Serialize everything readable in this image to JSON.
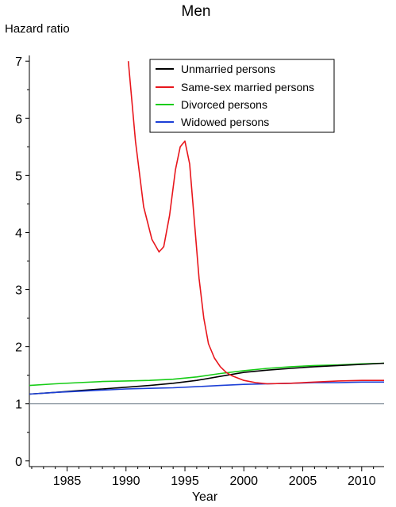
{
  "chart_data": {
    "type": "line",
    "title": "Men",
    "ylabel": "Hazard ratio",
    "xlabel": "Year",
    "xlim": [
      1981.8,
      2011.9
    ],
    "ylim": [
      -0.1,
      7.1
    ],
    "x_ticks": [
      1985,
      1990,
      1995,
      2000,
      2005,
      2010
    ],
    "y_ticks": [
      0,
      1,
      2,
      3,
      4,
      5,
      6,
      7
    ],
    "reference_line": 1,
    "grid": false,
    "legend_position": "top-right",
    "series": [
      {
        "name": "Unmarried persons",
        "color": "#000000",
        "x": [
          1981.8,
          1984,
          1986,
          1988,
          1990,
          1992,
          1994,
          1996,
          1998,
          2000,
          2002,
          2004,
          2006,
          2008,
          2010,
          2011.9
        ],
        "y": [
          1.17,
          1.2,
          1.23,
          1.26,
          1.29,
          1.32,
          1.36,
          1.41,
          1.48,
          1.55,
          1.59,
          1.62,
          1.65,
          1.67,
          1.69,
          1.71
        ]
      },
      {
        "name": "Same-sex married persons",
        "color": "#e8161c",
        "x": [
          1990.2,
          1990.8,
          1991.5,
          1992.2,
          1992.8,
          1993.2,
          1993.7,
          1994.2,
          1994.6,
          1995.0,
          1995.4,
          1995.8,
          1996.2,
          1996.6,
          1997.0,
          1997.5,
          1998.0,
          1998.5,
          1999.0,
          2000.0,
          2001.0,
          2002.0,
          2004.0,
          2006.0,
          2008.0,
          2010.0,
          2011.9
        ],
        "y": [
          7.0,
          5.6,
          4.45,
          3.88,
          3.66,
          3.75,
          4.3,
          5.1,
          5.5,
          5.6,
          5.2,
          4.2,
          3.2,
          2.5,
          2.05,
          1.8,
          1.65,
          1.55,
          1.49,
          1.41,
          1.37,
          1.35,
          1.36,
          1.38,
          1.4,
          1.41,
          1.41
        ]
      },
      {
        "name": "Divorced persons",
        "color": "#16cc16",
        "x": [
          1981.8,
          1984,
          1986,
          1988,
          1990,
          1992,
          1994,
          1996,
          1998,
          2000,
          2002,
          2004,
          2006,
          2008,
          2010,
          2011.9
        ],
        "y": [
          1.32,
          1.35,
          1.37,
          1.39,
          1.4,
          1.41,
          1.43,
          1.47,
          1.53,
          1.58,
          1.62,
          1.65,
          1.67,
          1.68,
          1.7,
          1.71
        ]
      },
      {
        "name": "Widowed persons",
        "color": "#1c3fd6",
        "x": [
          1981.8,
          1984,
          1986,
          1988,
          1990,
          1992,
          1994,
          1996,
          1998,
          2000,
          2002,
          2004,
          2006,
          2008,
          2010,
          2011.9
        ],
        "y": [
          1.17,
          1.2,
          1.22,
          1.24,
          1.26,
          1.27,
          1.28,
          1.3,
          1.32,
          1.34,
          1.35,
          1.36,
          1.37,
          1.37,
          1.38,
          1.38
        ]
      }
    ]
  }
}
